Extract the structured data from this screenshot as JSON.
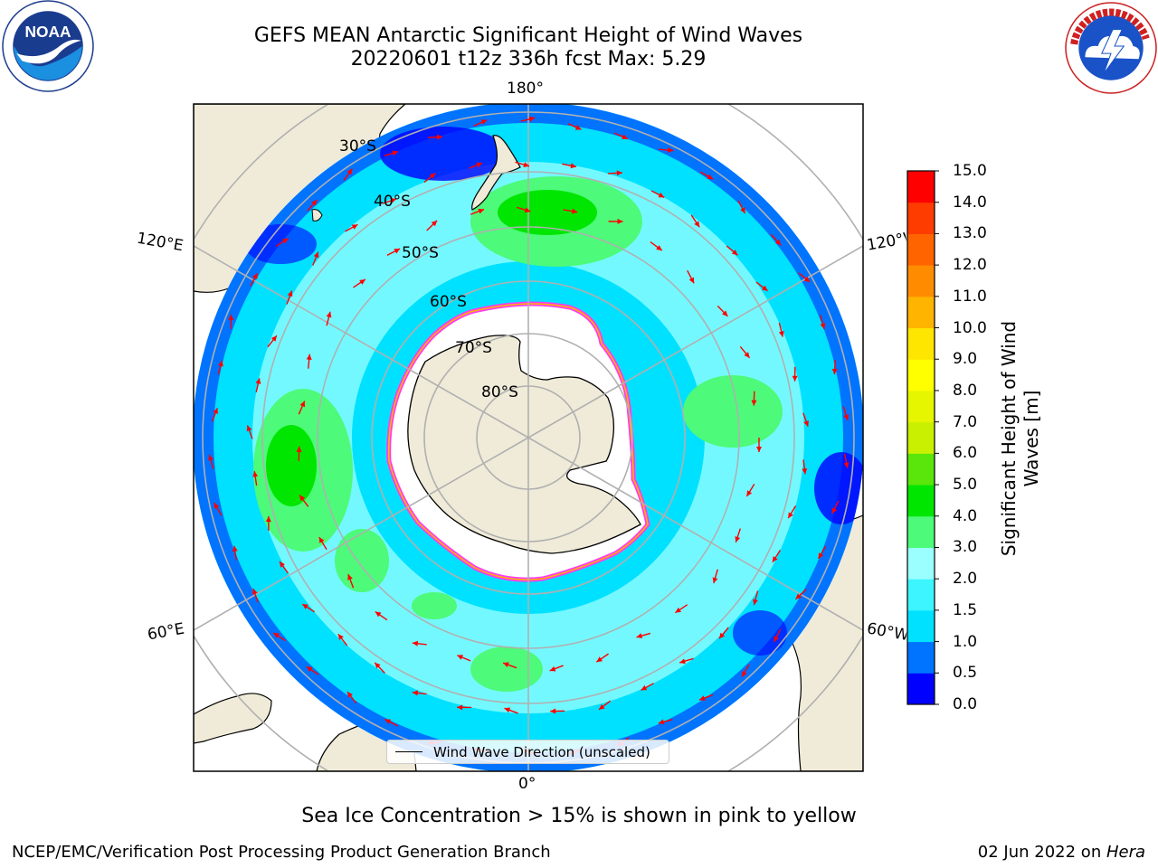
{
  "title": {
    "line1": "GEFS MEAN Antarctic Significant Height of Wind Waves",
    "line2": "20220601 t12z 336h fcst   Max: 5.29"
  },
  "logos": {
    "left": {
      "icon": "noaa-logo",
      "text": "NOAA"
    },
    "right": {
      "icon": "national-weather-service-logo",
      "text": "NATIONAL WEATHER SERVICE"
    }
  },
  "map": {
    "projection": "south-polar-stereographic",
    "longitude_labels": {
      "top": "180°",
      "bottom": "0°",
      "upper_left": "120°E",
      "upper_right": "120°W",
      "lower_left": "60°E",
      "lower_right": "60°W"
    },
    "latitude_labels": [
      "30°S",
      "40°S",
      "50°S",
      "60°S",
      "70°S",
      "80°S"
    ],
    "colors": {
      "land": "#efebd8",
      "sea_ice": "#ffffff",
      "ocean_background": "#00ffff",
      "graticule": "#b0b0b0",
      "arrows": "#ff0000",
      "ice_edge": "#ff3cf0"
    }
  },
  "legend": {
    "label": "Wind Wave Direction (unscaled)"
  },
  "colorbar": {
    "label": "Significant Height of Wind Waves [m]",
    "ticks": [
      "0.0",
      "0.5",
      "1.0",
      "1.5",
      "2.0",
      "3.0",
      "4.0",
      "5.0",
      "6.0",
      "7.0",
      "8.0",
      "9.0",
      "10.0",
      "11.0",
      "12.0",
      "13.0",
      "14.0",
      "15.0"
    ],
    "colors": [
      "#0000ff",
      "#0073ff",
      "#00e1ff",
      "#3cf5ff",
      "#9bffff",
      "#4dfa79",
      "#00e600",
      "#5ae60a",
      "#c8f000",
      "#e6f500",
      "#ffff00",
      "#ffe600",
      "#ffb400",
      "#ff8c00",
      "#ff6400",
      "#ff3c00",
      "#ff0000"
    ]
  },
  "caption": "Sea Ice Concentration > 15% is shown in pink to yellow",
  "footer": {
    "left": "NCEP/EMC/Verification Post Processing Product Generation Branch",
    "right_prefix": "02 Jun 2022 on ",
    "right_host": "Hera"
  }
}
